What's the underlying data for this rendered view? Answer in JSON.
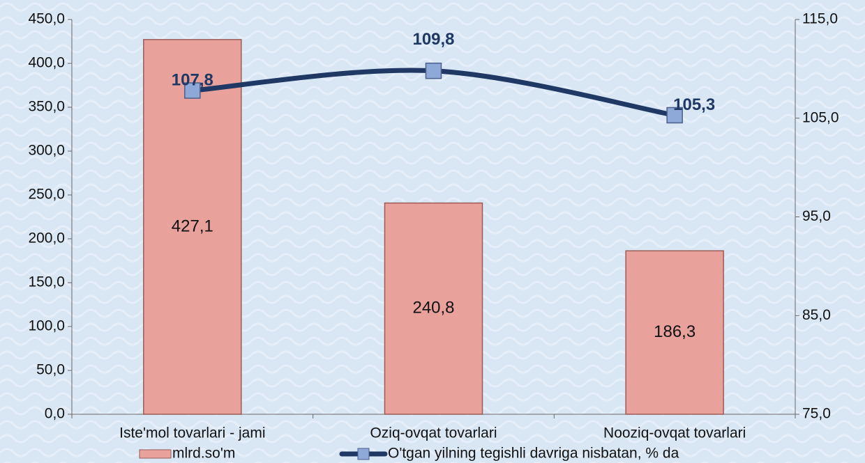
{
  "chart_data": {
    "type": "bar",
    "categories": [
      "Iste'mol tovarlari - jami",
      "Oziq-ovqat tovarlari",
      "Nooziq-ovqat tovarlari"
    ],
    "series": [
      {
        "name": "mlrd.so'm",
        "type": "bar",
        "color": "#e8a19b",
        "values": [
          427.1,
          240.8,
          186.3
        ],
        "value_labels": [
          "427,1",
          "240,8",
          "186,3"
        ]
      },
      {
        "name": "O'tgan yilning tegishli davriga nisbatan, % da",
        "type": "line",
        "axis": "y2",
        "color": "#1f3864",
        "marker_color": "#8ea9d8",
        "values": [
          107.8,
          109.8,
          105.3
        ],
        "value_labels": [
          "107,8",
          "109,8",
          "105,3"
        ]
      }
    ],
    "ylim": [
      0,
      450
    ],
    "yticks": [
      {
        "value": 0,
        "label": "0,0"
      },
      {
        "value": 50,
        "label": "50,0"
      },
      {
        "value": 100,
        "label": "100,0"
      },
      {
        "value": 150,
        "label": "150,0"
      },
      {
        "value": 200,
        "label": "200,0"
      },
      {
        "value": 250,
        "label": "250,0"
      },
      {
        "value": 300,
        "label": "300,0"
      },
      {
        "value": 350,
        "label": "350,0"
      },
      {
        "value": 400,
        "label": "400,0"
      },
      {
        "value": 450,
        "label": "450,0"
      }
    ],
    "y2lim": [
      75,
      115
    ],
    "y2ticks": [
      {
        "value": 75,
        "label": "75,0"
      },
      {
        "value": 85,
        "label": "85,0"
      },
      {
        "value": 95,
        "label": "95,0"
      },
      {
        "value": 105,
        "label": "105,0"
      },
      {
        "value": 115,
        "label": "115,0"
      }
    ],
    "legend": "bottom"
  }
}
